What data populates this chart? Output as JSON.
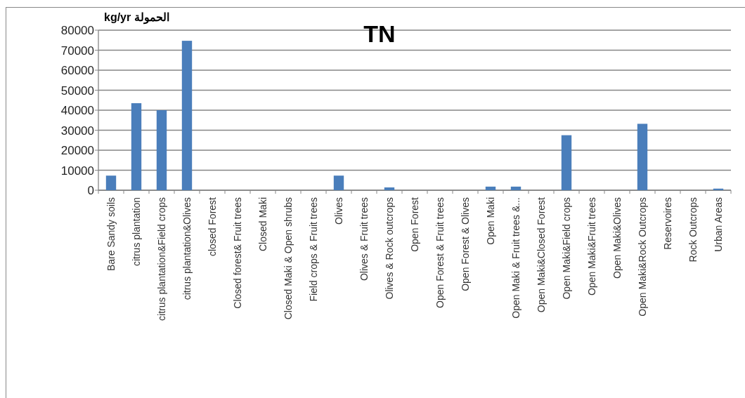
{
  "chart_data": {
    "type": "bar",
    "title": "TN",
    "ylabel": "kg/yr الحمولة",
    "categories": [
      "Bare Sandy soils",
      "citrus plantation",
      "citrus plantation&Field crops",
      "citrus plantation&Olives",
      "closed Forest",
      "Closed forest& Fruit trees",
      "Closed Maki",
      "Closed Maki & Open shrubs",
      "Field crops & Fruit trees",
      "Olives",
      "Olives & Fruit trees",
      "Olives & Rock outcrops",
      "Open Forest",
      "Open Forest & Fruit trees",
      "Open Forest & Olives",
      "Open Maki",
      "Open Maki & Fruit trees &...",
      "Open Maki&Closed Forest",
      "Open Maki&Field crops",
      "Open Maki&Fruit trees",
      "Open Maki&Olives",
      "Open Maki&Rock Outcrops",
      "Reservoires",
      "Rock Outcrops",
      "Urban Areas"
    ],
    "values": [
      7300,
      43500,
      40000,
      74700,
      0,
      0,
      0,
      0,
      0,
      7300,
      0,
      1400,
      0,
      0,
      0,
      1800,
      1800,
      0,
      27500,
      0,
      0,
      33200,
      0,
      0,
      800
    ],
    "color": "#4a7ebb",
    "ylim": [
      0,
      80000
    ],
    "yticks": [
      0,
      10000,
      20000,
      30000,
      40000,
      50000,
      60000,
      70000,
      80000
    ],
    "grid": "y"
  }
}
